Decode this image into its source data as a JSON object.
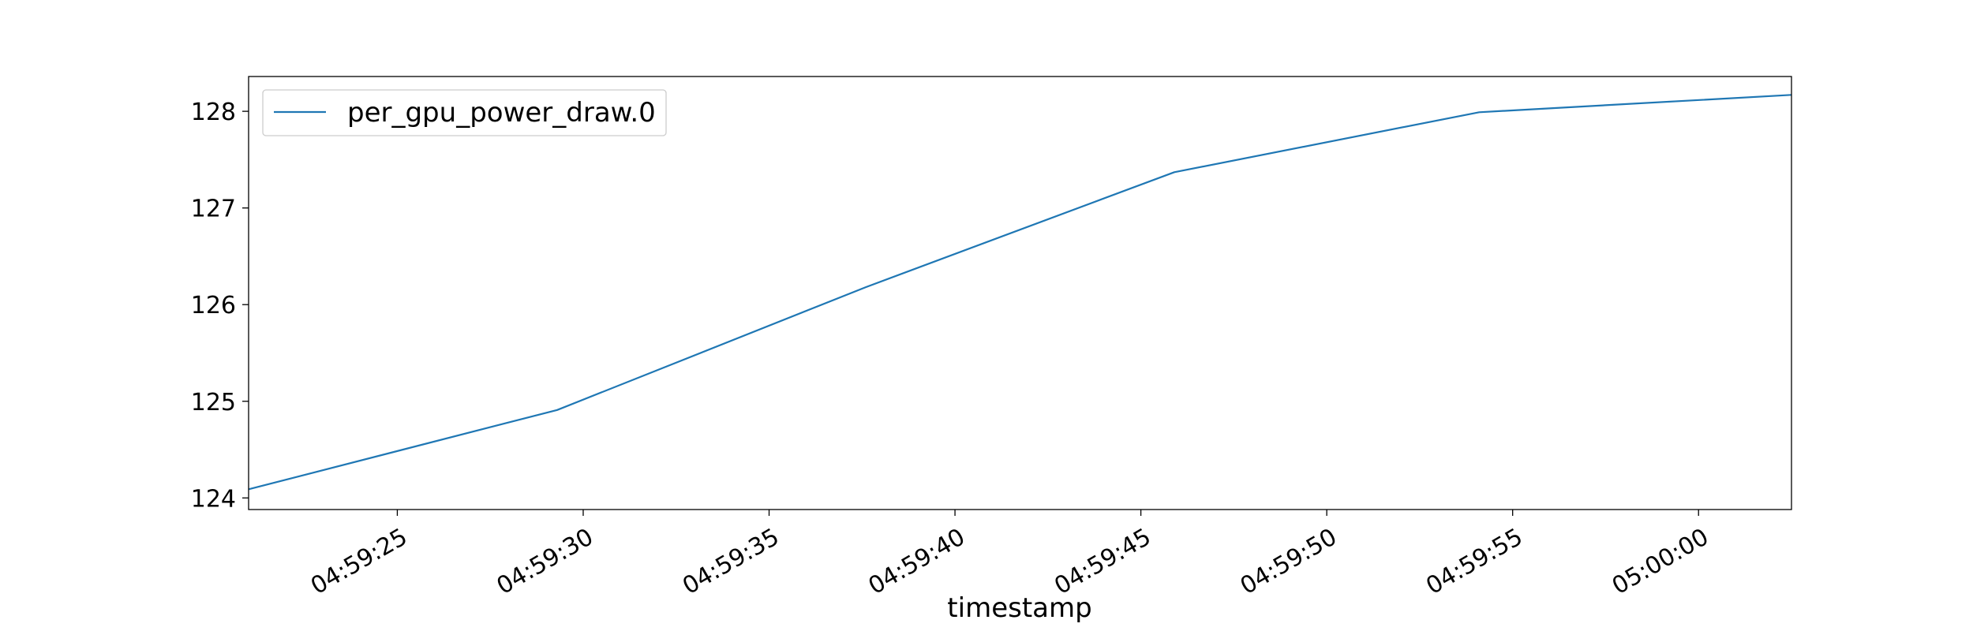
{
  "chart_data": {
    "type": "line",
    "title": "",
    "xlabel": "timestamp",
    "ylabel": "",
    "x_ticks": [
      "04:59:25",
      "04:59:30",
      "04:59:35",
      "04:59:40",
      "04:59:45",
      "04:59:50",
      "04:59:55",
      "05:00:00"
    ],
    "y_ticks": [
      124,
      125,
      126,
      127,
      128
    ],
    "xlim": [
      "04:59:21",
      "05:00:02.5"
    ],
    "ylim": [
      123.88,
      128.36
    ],
    "grid": false,
    "legend": {
      "position": "upper-left",
      "entries": [
        "per_gpu_power_draw.0"
      ]
    },
    "series": [
      {
        "name": "per_gpu_power_draw.0",
        "color": "#1f77b4",
        "x": [
          "04:59:21",
          "04:59:29.3",
          "04:59:37.6",
          "04:59:45.9",
          "04:59:54.1",
          "05:00:02.5"
        ],
        "y": [
          124.09,
          124.91,
          126.18,
          127.37,
          127.99,
          128.17
        ]
      }
    ]
  }
}
